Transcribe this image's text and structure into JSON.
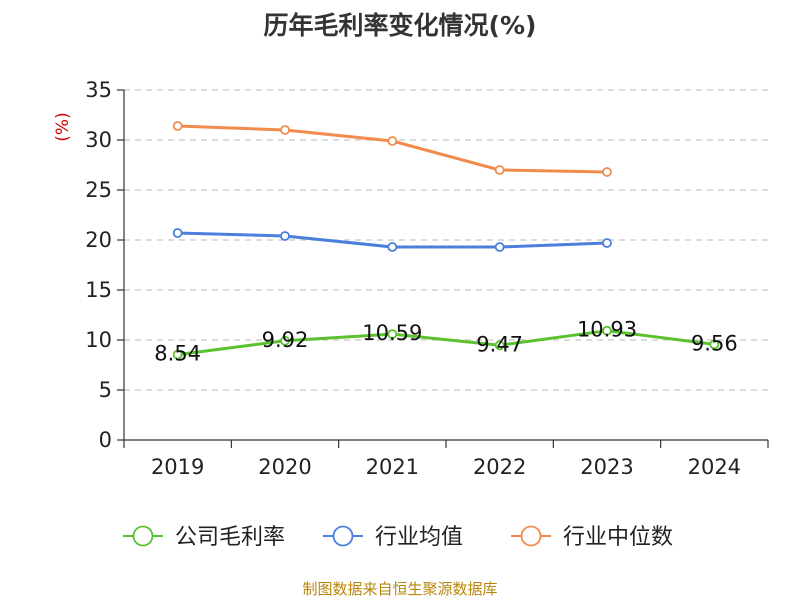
{
  "title": "历年毛利率变化情况(%)",
  "source": "制图数据来自恒生聚源数据库",
  "chart_data": {
    "type": "line",
    "title": "历年毛利率变化情况(%)",
    "ylabel": "(%)",
    "xlabel": "",
    "categories": [
      "2019",
      "2020",
      "2021",
      "2022",
      "2023",
      "2024"
    ],
    "ylim": [
      0,
      35
    ],
    "yticks": [
      0,
      5,
      10,
      15,
      20,
      25,
      30,
      35
    ],
    "grid": true,
    "legend_position": "bottom",
    "series": [
      {
        "name": "公司毛利率",
        "color": "#5bc12f",
        "show_labels": true,
        "values": [
          8.54,
          9.92,
          10.59,
          9.47,
          10.93,
          9.56
        ]
      },
      {
        "name": "行业均值",
        "color": "#4a7fdc",
        "show_labels": false,
        "values": [
          20.7,
          20.4,
          19.3,
          19.3,
          19.7,
          null
        ]
      },
      {
        "name": "行业中位数",
        "color": "#f28c4e",
        "show_labels": false,
        "values": [
          31.4,
          31.0,
          29.9,
          27.0,
          26.8,
          null
        ]
      }
    ]
  }
}
